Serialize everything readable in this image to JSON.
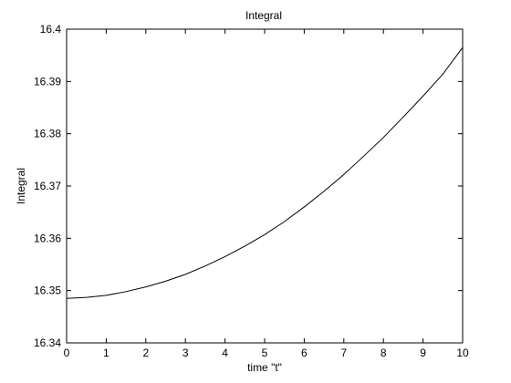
{
  "chart_data": {
    "type": "line",
    "title": "Integral",
    "xlabel": "time \"t\"",
    "ylabel": "Integral",
    "xlim": [
      0,
      10
    ],
    "ylim": [
      16.34,
      16.4
    ],
    "xticks": [
      "0",
      "1",
      "2",
      "3",
      "4",
      "5",
      "6",
      "7",
      "8",
      "9",
      "10"
    ],
    "yticks": [
      "16.34",
      "16.35",
      "16.36",
      "16.37",
      "16.38",
      "16.39",
      "16.4"
    ],
    "grid": false,
    "series": [
      {
        "color": "#000000",
        "x": [
          0,
          0.5,
          1,
          1.5,
          2,
          2.5,
          3,
          3.5,
          4,
          4.5,
          5,
          5.5,
          6,
          6.5,
          7,
          7.5,
          8,
          8.5,
          9,
          9.5,
          10
        ],
        "y": [
          16.3485,
          16.3487,
          16.3491,
          16.3498,
          16.3507,
          16.3518,
          16.3531,
          16.3547,
          16.3565,
          16.3585,
          16.3607,
          16.3632,
          16.366,
          16.369,
          16.3722,
          16.3757,
          16.3793,
          16.3832,
          16.3872,
          16.3914,
          16.3965
        ]
      }
    ]
  }
}
